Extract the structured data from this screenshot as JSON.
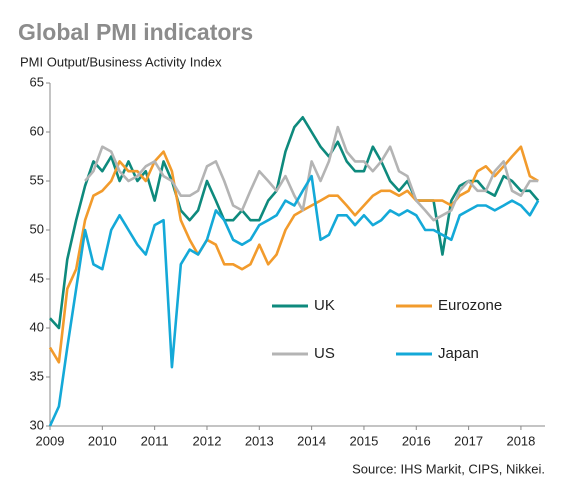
{
  "chart_data": {
    "type": "line",
    "title": "Global PMI indicators",
    "subtitle": "PMI Output/Business Activity Index",
    "source": "Source: IHS Markit, CIPS, Nikkei.",
    "x": [
      2009.0,
      2009.17,
      2009.33,
      2009.5,
      2009.67,
      2009.83,
      2010.0,
      2010.17,
      2010.33,
      2010.5,
      2010.67,
      2010.83,
      2011.0,
      2011.17,
      2011.33,
      2011.5,
      2011.67,
      2011.83,
      2012.0,
      2012.17,
      2012.33,
      2012.5,
      2012.67,
      2012.83,
      2013.0,
      2013.17,
      2013.33,
      2013.5,
      2013.67,
      2013.83,
      2014.0,
      2014.17,
      2014.33,
      2014.5,
      2014.67,
      2014.83,
      2015.0,
      2015.17,
      2015.33,
      2015.5,
      2015.67,
      2015.83,
      2016.0,
      2016.17,
      2016.33,
      2016.5,
      2016.67,
      2016.83,
      2017.0,
      2017.17,
      2017.33,
      2017.5,
      2017.67,
      2017.83,
      2018.0,
      2018.17,
      2018.33
    ],
    "series": [
      {
        "name": "UK",
        "color": "#0e8a7d",
        "values": [
          41,
          40,
          47,
          51,
          54.5,
          57,
          56,
          57.5,
          55,
          57,
          55,
          56,
          53,
          57,
          55,
          52,
          51,
          52,
          55,
          53,
          51,
          51,
          52,
          51,
          51,
          53,
          54,
          58,
          60.5,
          61.5,
          60,
          58.5,
          57.5,
          59,
          57,
          56,
          56,
          58.5,
          57,
          55,
          54,
          55,
          53,
          53,
          53,
          47.5,
          53,
          54.5,
          55,
          55,
          54,
          53.5,
          55.5,
          55,
          54,
          54,
          53
        ]
      },
      {
        "name": "Eurozone",
        "color": "#f29b2c",
        "values": [
          38,
          36.5,
          44,
          46,
          51,
          53.5,
          54,
          55,
          57,
          56,
          56,
          55,
          57,
          58,
          56,
          51,
          49,
          47.5,
          49,
          48.5,
          46.5,
          46.5,
          46,
          46.5,
          48.5,
          46.5,
          47.5,
          50,
          51.5,
          52,
          52.5,
          53,
          53.5,
          53.5,
          52.5,
          51.5,
          52.5,
          53.5,
          54,
          54,
          53.5,
          54,
          53,
          53,
          53,
          53,
          52.5,
          53.5,
          54,
          56,
          56.5,
          55.5,
          56.5,
          57.5,
          58.5,
          55.5,
          55
        ]
      },
      {
        "name": "US",
        "color": "#b4b4b4",
        "values": [
          null,
          null,
          null,
          null,
          55,
          56,
          58.5,
          58,
          56,
          55,
          55.5,
          56.5,
          57,
          55.5,
          55,
          53.5,
          53.5,
          54,
          56.5,
          57,
          55,
          52.5,
          52,
          54,
          56,
          55,
          54,
          55.5,
          53.5,
          52,
          57,
          55,
          57,
          60.5,
          58,
          57,
          57,
          56,
          57,
          58.5,
          56,
          55.5,
          53,
          52,
          51,
          51.5,
          52,
          54,
          55,
          54,
          54,
          56,
          57,
          54,
          53.5,
          55,
          55
        ]
      },
      {
        "name": "Japan",
        "color": "#14a9d8",
        "values": [
          30,
          32,
          38,
          44,
          50,
          46.5,
          46,
          50,
          51.5,
          50,
          48.5,
          47.5,
          50.5,
          51,
          36,
          46.5,
          48,
          47.5,
          49,
          52,
          51,
          49,
          48.5,
          49,
          50.5,
          51,
          51.5,
          53,
          52.5,
          54,
          55.5,
          49,
          49.5,
          51.5,
          51.5,
          50.5,
          51.5,
          50.5,
          51,
          52,
          51.5,
          52,
          51.5,
          50,
          50,
          49.5,
          49,
          51.5,
          52,
          52.5,
          52.5,
          52,
          52.5,
          53,
          52.5,
          51.5,
          53
        ]
      }
    ],
    "xlim": [
      2009,
      2018.46
    ],
    "xticks": [
      2009,
      2010,
      2011,
      2012,
      2013,
      2014,
      2015,
      2016,
      2017,
      2018
    ],
    "ylim": [
      30,
      65
    ],
    "yticks": [
      30,
      35,
      40,
      45,
      50,
      55,
      60,
      65
    ],
    "grid": false
  }
}
